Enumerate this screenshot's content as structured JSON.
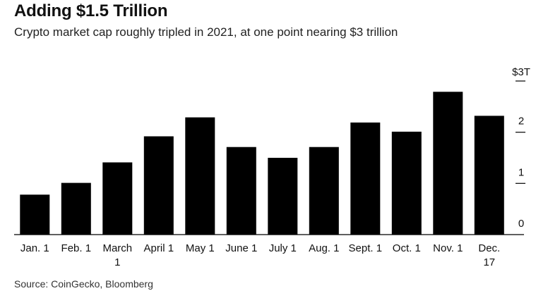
{
  "chart_data": {
    "type": "bar",
    "title": "Adding $1.5 Trillion",
    "subtitle": "Crypto market cap roughly tripled in 2021, at one point nearing $3 trillion",
    "source": "Source: CoinGecko, Bloomberg",
    "categories": [
      [
        "Jan. 1"
      ],
      [
        "Feb. 1"
      ],
      [
        "March",
        "1"
      ],
      [
        "April 1"
      ],
      [
        "May 1"
      ],
      [
        "June 1"
      ],
      [
        "July 1"
      ],
      [
        "Aug. 1"
      ],
      [
        "Sept. 1"
      ],
      [
        "Oct. 1"
      ],
      [
        "Nov. 1"
      ],
      [
        "Dec.",
        "17"
      ]
    ],
    "values": [
      0.78,
      1.01,
      1.41,
      1.92,
      2.29,
      1.71,
      1.5,
      1.71,
      2.19,
      2.01,
      2.79,
      2.32
    ],
    "yticks": [
      {
        "value": 0,
        "label": "0"
      },
      {
        "value": 1,
        "label": "1"
      },
      {
        "value": 2,
        "label": "2"
      },
      {
        "value": 3,
        "label": "$3T"
      }
    ],
    "ylim": [
      0,
      3
    ],
    "bar_color": "#000000",
    "axis_color": "#000000",
    "grid": false
  }
}
